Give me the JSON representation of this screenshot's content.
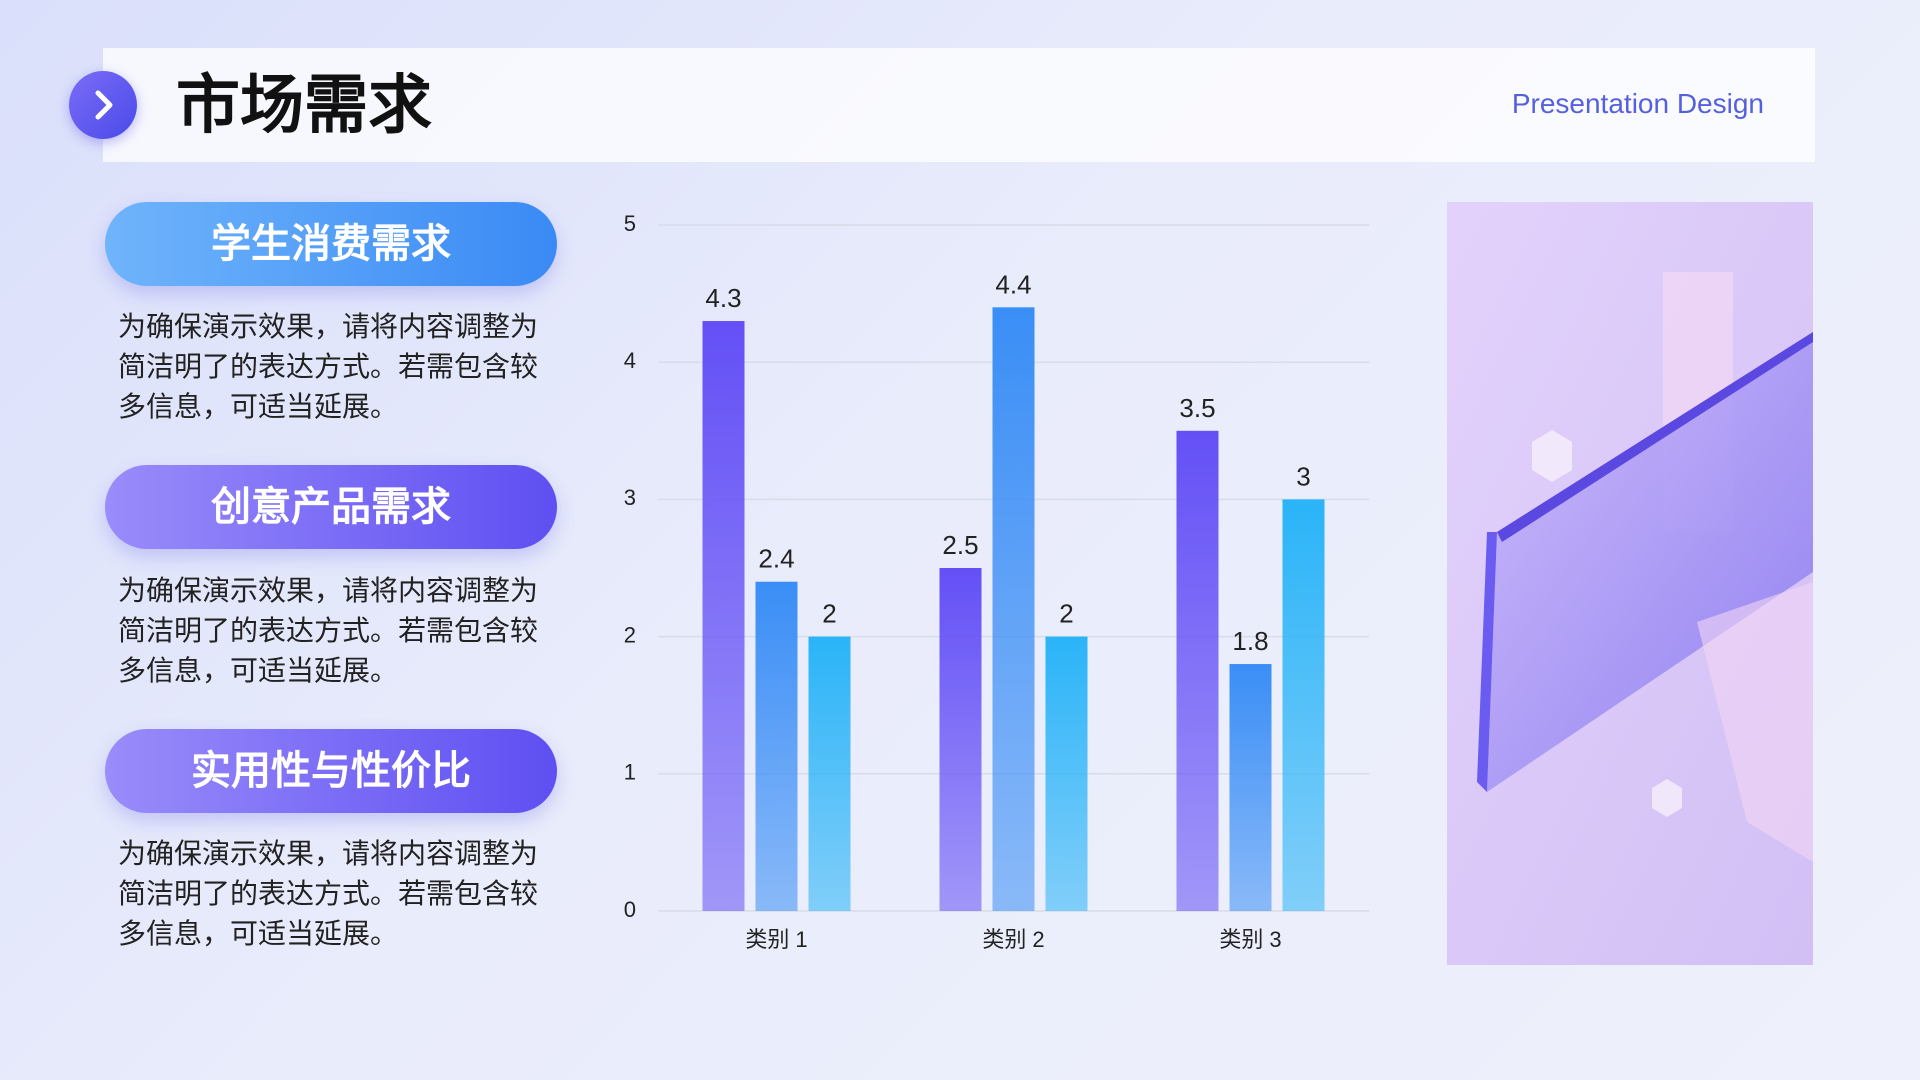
{
  "header": {
    "title": "市场需求",
    "tagline": "Presentation Design"
  },
  "cards": [
    {
      "title": "学生消费需求",
      "lines": [
        "为确保演示效果，请将内容调整为",
        "简洁明了的表达方式。若需包含较",
        "多信息，可适当延展。"
      ]
    },
    {
      "title": "创意产品需求",
      "lines": [
        "为确保演示效果，请将内容调整为",
        "简洁明了的表达方式。若需包含较",
        "多信息，可适当延展。"
      ]
    },
    {
      "title": "实用性与性价比",
      "lines": [
        "为确保演示效果，请将内容调整为",
        "简洁明了的表达方式。若需包含较",
        "多信息，可适当延展。"
      ]
    }
  ],
  "chart_data": {
    "type": "bar",
    "categories": [
      "类别 1",
      "类别 2",
      "类别 3"
    ],
    "series": [
      {
        "color": "#6450f6",
        "values": [
          4.3,
          2.5,
          3.5
        ]
      },
      {
        "color": "#3a8ef6",
        "values": [
          2.4,
          4.4,
          1.8
        ]
      },
      {
        "color": "#2ab4f8",
        "values": [
          2,
          2,
          3
        ]
      }
    ],
    "ylim": [
      0,
      5
    ],
    "yticks": [
      0,
      1,
      2,
      3,
      4,
      5
    ],
    "grid": true
  }
}
